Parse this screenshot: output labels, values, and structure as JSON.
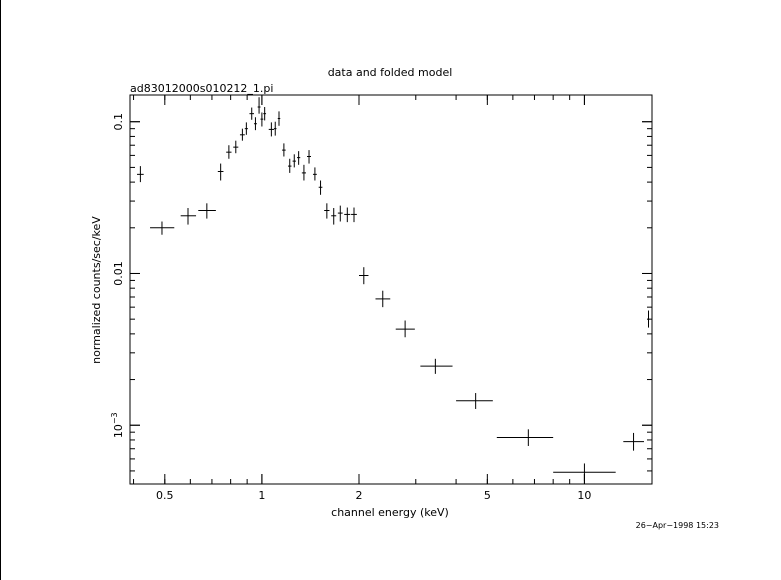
{
  "chart_data": {
    "type": "scatter",
    "title": "data and folded model",
    "subtitle": "ad83012000s010212_1.pi",
    "xlabel": "channel energy (keV)",
    "ylabel": "normalized counts/sec/keV",
    "x_scale": "log",
    "y_scale": "log",
    "xlim": [
      0.39,
      16.2
    ],
    "ylim": [
      0.00041,
      0.15
    ],
    "x_ticks": [
      {
        "value": 0.5,
        "label": "0.5"
      },
      {
        "value": 1,
        "label": "1"
      },
      {
        "value": 2,
        "label": "2"
      },
      {
        "value": 5,
        "label": "5"
      },
      {
        "value": 10,
        "label": "10"
      }
    ],
    "y_ticks": [
      {
        "value": 0.1,
        "label": "0.1"
      },
      {
        "value": 0.01,
        "label": "0.01"
      },
      {
        "value": 0.001,
        "label": "10",
        "exponent": "−3"
      }
    ],
    "grid": false,
    "timestamp": "26−Apr−1998 15:23",
    "points": [
      {
        "x": 0.42,
        "xlo": 0.41,
        "xhi": 0.43,
        "y": 0.045,
        "ylo": 0.04,
        "yhi": 0.051
      },
      {
        "x": 0.49,
        "xlo": 0.45,
        "xhi": 0.535,
        "y": 0.02,
        "ylo": 0.018,
        "yhi": 0.022
      },
      {
        "x": 0.59,
        "xlo": 0.56,
        "xhi": 0.625,
        "y": 0.024,
        "ylo": 0.021,
        "yhi": 0.027
      },
      {
        "x": 0.675,
        "xlo": 0.635,
        "xhi": 0.72,
        "y": 0.026,
        "ylo": 0.023,
        "yhi": 0.029
      },
      {
        "x": 0.745,
        "xlo": 0.73,
        "xhi": 0.76,
        "y": 0.047,
        "ylo": 0.041,
        "yhi": 0.053
      },
      {
        "x": 0.79,
        "xlo": 0.775,
        "xhi": 0.805,
        "y": 0.063,
        "ylo": 0.057,
        "yhi": 0.07
      },
      {
        "x": 0.83,
        "xlo": 0.815,
        "xhi": 0.845,
        "y": 0.068,
        "ylo": 0.062,
        "yhi": 0.075
      },
      {
        "x": 0.87,
        "xlo": 0.855,
        "xhi": 0.885,
        "y": 0.082,
        "ylo": 0.075,
        "yhi": 0.09
      },
      {
        "x": 0.895,
        "xlo": 0.885,
        "xhi": 0.905,
        "y": 0.09,
        "ylo": 0.082,
        "yhi": 0.099
      },
      {
        "x": 0.93,
        "xlo": 0.915,
        "xhi": 0.945,
        "y": 0.113,
        "ylo": 0.103,
        "yhi": 0.124
      },
      {
        "x": 0.955,
        "xlo": 0.945,
        "xhi": 0.965,
        "y": 0.097,
        "ylo": 0.088,
        "yhi": 0.107
      },
      {
        "x": 0.98,
        "xlo": 0.97,
        "xhi": 0.99,
        "y": 0.125,
        "ylo": 0.113,
        "yhi": 0.145
      },
      {
        "x": 1.0,
        "xlo": 0.99,
        "xhi": 1.01,
        "y": 0.104,
        "ylo": 0.093,
        "yhi": 0.115
      },
      {
        "x": 1.02,
        "xlo": 1.01,
        "xhi": 1.03,
        "y": 0.113,
        "ylo": 0.102,
        "yhi": 0.125
      },
      {
        "x": 1.07,
        "xlo": 1.05,
        "xhi": 1.09,
        "y": 0.089,
        "ylo": 0.08,
        "yhi": 0.099
      },
      {
        "x": 1.1,
        "xlo": 1.09,
        "xhi": 1.11,
        "y": 0.09,
        "ylo": 0.081,
        "yhi": 0.1
      },
      {
        "x": 1.13,
        "xlo": 1.12,
        "xhi": 1.14,
        "y": 0.105,
        "ylo": 0.094,
        "yhi": 0.117
      },
      {
        "x": 1.17,
        "xlo": 1.155,
        "xhi": 1.185,
        "y": 0.065,
        "ylo": 0.059,
        "yhi": 0.072
      },
      {
        "x": 1.22,
        "xlo": 1.205,
        "xhi": 1.235,
        "y": 0.051,
        "ylo": 0.046,
        "yhi": 0.057
      },
      {
        "x": 1.26,
        "xlo": 1.245,
        "xhi": 1.275,
        "y": 0.055,
        "ylo": 0.05,
        "yhi": 0.061
      },
      {
        "x": 1.3,
        "xlo": 1.285,
        "xhi": 1.315,
        "y": 0.058,
        "ylo": 0.052,
        "yhi": 0.064
      },
      {
        "x": 1.35,
        "xlo": 1.33,
        "xhi": 1.37,
        "y": 0.046,
        "ylo": 0.041,
        "yhi": 0.052
      },
      {
        "x": 1.4,
        "xlo": 1.38,
        "xhi": 1.42,
        "y": 0.059,
        "ylo": 0.053,
        "yhi": 0.065
      },
      {
        "x": 1.46,
        "xlo": 1.44,
        "xhi": 1.48,
        "y": 0.045,
        "ylo": 0.041,
        "yhi": 0.05
      },
      {
        "x": 1.52,
        "xlo": 1.5,
        "xhi": 1.54,
        "y": 0.037,
        "ylo": 0.033,
        "yhi": 0.041
      },
      {
        "x": 1.59,
        "xlo": 1.56,
        "xhi": 1.62,
        "y": 0.026,
        "ylo": 0.023,
        "yhi": 0.029
      },
      {
        "x": 1.67,
        "xlo": 1.64,
        "xhi": 1.7,
        "y": 0.024,
        "ylo": 0.021,
        "yhi": 0.027
      },
      {
        "x": 1.75,
        "xlo": 1.72,
        "xhi": 1.78,
        "y": 0.025,
        "ylo": 0.022,
        "yhi": 0.028
      },
      {
        "x": 1.84,
        "xlo": 1.8,
        "xhi": 1.88,
        "y": 0.0245,
        "ylo": 0.0218,
        "yhi": 0.0272
      },
      {
        "x": 1.93,
        "xlo": 1.89,
        "xhi": 1.97,
        "y": 0.0245,
        "ylo": 0.0218,
        "yhi": 0.0272
      },
      {
        "x": 2.07,
        "xlo": 2.0,
        "xhi": 2.14,
        "y": 0.0097,
        "ylo": 0.0085,
        "yhi": 0.011
      },
      {
        "x": 2.37,
        "xlo": 2.25,
        "xhi": 2.5,
        "y": 0.0068,
        "ylo": 0.006,
        "yhi": 0.0077
      },
      {
        "x": 2.78,
        "xlo": 2.6,
        "xhi": 2.98,
        "y": 0.0043,
        "ylo": 0.0038,
        "yhi": 0.0049
      },
      {
        "x": 3.45,
        "xlo": 3.1,
        "xhi": 3.9,
        "y": 0.00245,
        "ylo": 0.00218,
        "yhi": 0.00274
      },
      {
        "x": 4.6,
        "xlo": 4.0,
        "xhi": 5.2,
        "y": 0.00145,
        "ylo": 0.00128,
        "yhi": 0.00163
      },
      {
        "x": 6.7,
        "xlo": 5.35,
        "xhi": 8.0,
        "y": 0.00083,
        "ylo": 0.00073,
        "yhi": 0.00094
      },
      {
        "x": 10.0,
        "xlo": 8.0,
        "xhi": 12.5,
        "y": 0.00049,
        "ylo": 0.00043,
        "yhi": 0.00056
      },
      {
        "x": 14.2,
        "xlo": 13.2,
        "xhi": 15.3,
        "y": 0.00078,
        "ylo": 0.00068,
        "yhi": 0.00089
      },
      {
        "x": 15.8,
        "xlo": 15.7,
        "xhi": 15.9,
        "y": 0.005,
        "ylo": 0.0044,
        "yhi": 0.0057
      }
    ]
  }
}
